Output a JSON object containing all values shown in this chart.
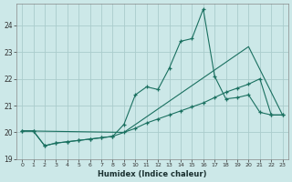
{
  "xlabel": "Humidex (Indice chaleur)",
  "background_color": "#cce8e8",
  "grid_color": "#aacccc",
  "line_color": "#1a7060",
  "xlim": [
    -0.5,
    23.5
  ],
  "ylim": [
    19.0,
    24.8
  ],
  "yticks": [
    19,
    20,
    21,
    22,
    23,
    24
  ],
  "xticks": [
    0,
    1,
    2,
    3,
    4,
    5,
    6,
    7,
    8,
    9,
    10,
    11,
    12,
    13,
    14,
    15,
    16,
    17,
    18,
    19,
    20,
    21,
    22,
    23
  ],
  "series1_x": [
    0,
    1,
    2,
    3,
    4,
    5,
    6,
    7,
    8,
    9,
    10,
    11,
    12,
    13,
    14,
    15,
    16,
    17,
    18,
    19,
    20,
    21,
    22,
    23
  ],
  "series1_y": [
    20.05,
    20.05,
    19.5,
    19.6,
    19.65,
    19.7,
    19.75,
    19.8,
    19.85,
    20.0,
    20.15,
    20.35,
    20.5,
    20.65,
    20.8,
    20.95,
    21.1,
    21.3,
    21.5,
    21.65,
    21.8,
    22.0,
    20.65,
    20.65
  ],
  "series2_x": [
    0,
    1,
    2,
    3,
    4,
    5,
    6,
    7,
    8,
    9,
    10,
    11,
    12,
    13,
    14,
    15,
    16,
    17,
    18,
    19,
    20,
    21,
    22,
    23
  ],
  "series2_y": [
    20.05,
    20.05,
    19.5,
    19.6,
    19.65,
    19.7,
    19.75,
    19.8,
    19.85,
    20.3,
    21.4,
    21.7,
    21.6,
    22.4,
    23.4,
    23.5,
    24.6,
    22.1,
    21.25,
    21.3,
    21.4,
    20.75,
    20.65,
    20.65
  ],
  "series3_x": [
    0,
    1,
    9,
    20,
    23
  ],
  "series3_y": [
    20.05,
    20.05,
    20.0,
    23.2,
    20.65
  ]
}
